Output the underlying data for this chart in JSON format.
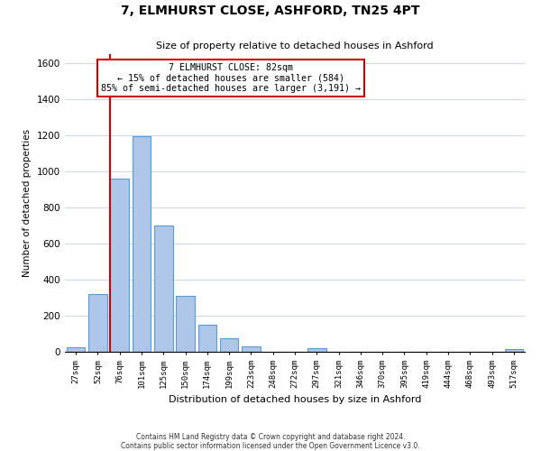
{
  "title": "7, ELMHURST CLOSE, ASHFORD, TN25 4PT",
  "subtitle": "Size of property relative to detached houses in Ashford",
  "xlabel": "Distribution of detached houses by size in Ashford",
  "ylabel": "Number of detached properties",
  "footer_line1": "Contains HM Land Registry data © Crown copyright and database right 2024.",
  "footer_line2": "Contains public sector information licensed under the Open Government Licence v3.0.",
  "bar_labels": [
    "27sqm",
    "52sqm",
    "76sqm",
    "101sqm",
    "125sqm",
    "150sqm",
    "174sqm",
    "199sqm",
    "223sqm",
    "248sqm",
    "272sqm",
    "297sqm",
    "321sqm",
    "346sqm",
    "370sqm",
    "395sqm",
    "419sqm",
    "444sqm",
    "468sqm",
    "493sqm",
    "517sqm"
  ],
  "bar_values": [
    25,
    320,
    960,
    1195,
    700,
    310,
    150,
    75,
    30,
    0,
    0,
    20,
    0,
    0,
    0,
    0,
    0,
    0,
    0,
    0,
    15
  ],
  "bar_color": "#aec6e8",
  "bar_edge_color": "#5b9bd5",
  "ylim": [
    0,
    1650
  ],
  "yticks": [
    0,
    200,
    400,
    600,
    800,
    1000,
    1200,
    1400,
    1600
  ],
  "annotation_title": "7 ELMHURST CLOSE: 82sqm",
  "annotation_line1": "← 15% of detached houses are smaller (584)",
  "annotation_line2": "85% of semi-detached houses are larger (3,191) →",
  "annotation_box_color": "#ffffff",
  "annotation_box_edge": "#cc0000",
  "red_line_color": "#cc0000",
  "background_color": "#ffffff",
  "grid_color": "#d0d8e8"
}
